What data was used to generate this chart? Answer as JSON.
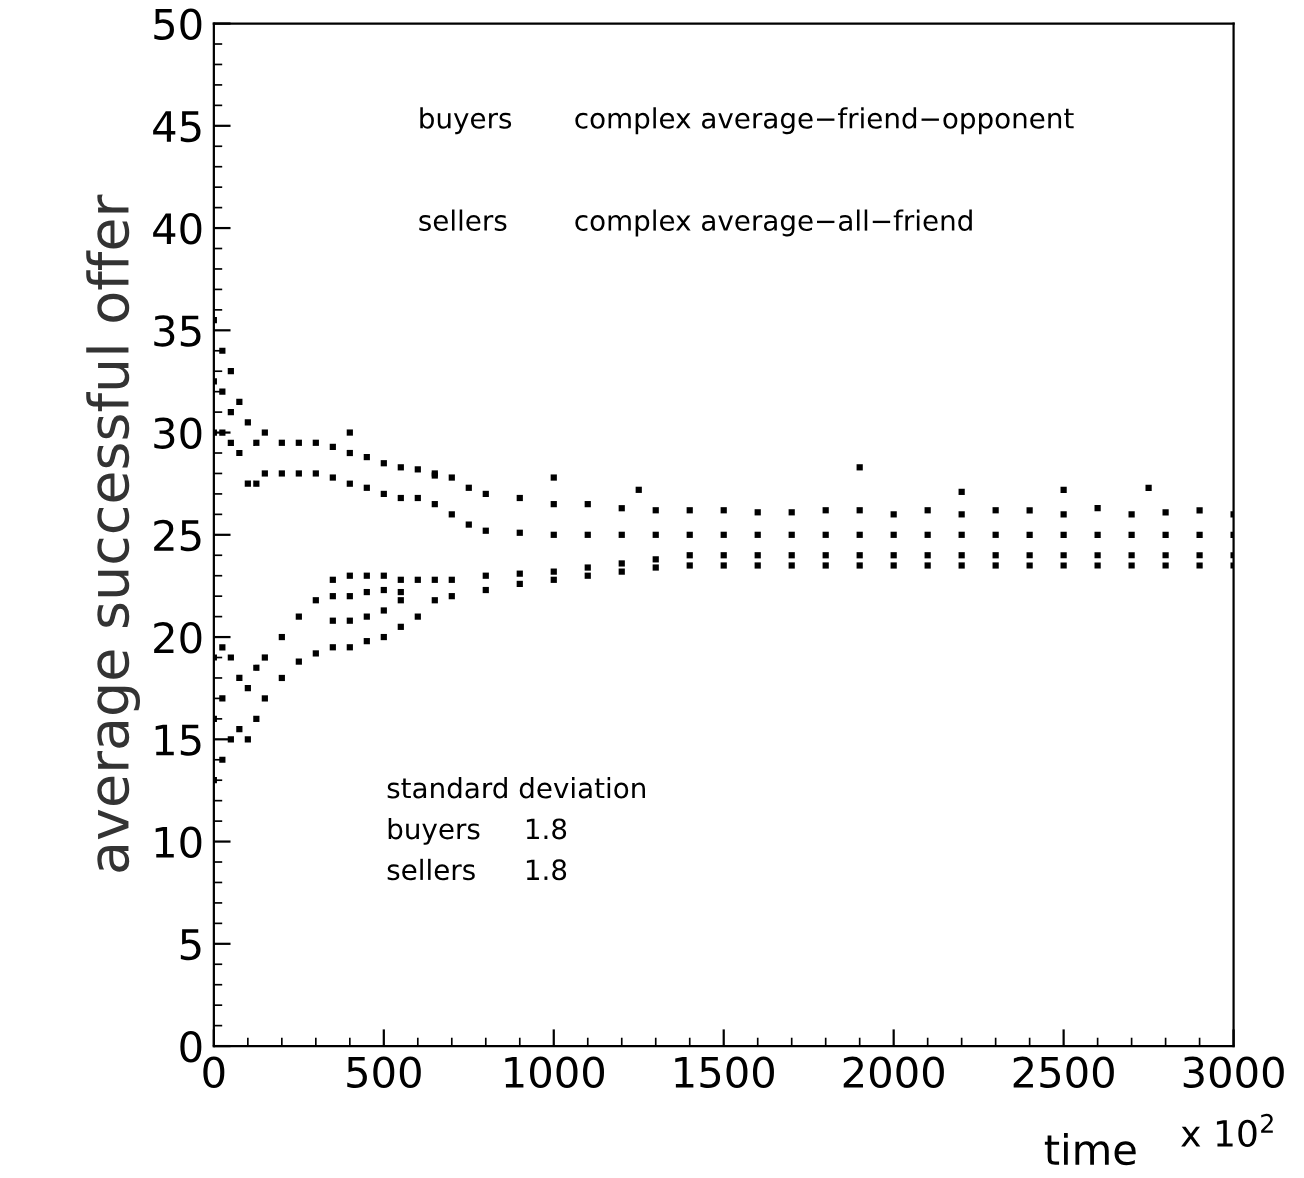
{
  "chart_data": {
    "type": "scatter",
    "xlabel": "time",
    "ylabel": "average successful offer",
    "xlim": [
      0,
      3000
    ],
    "xticks": [
      0,
      500,
      1000,
      1500,
      2000,
      2500,
      3000
    ],
    "ylim": [
      0,
      50
    ],
    "yticks": [
      0,
      5,
      10,
      15,
      20,
      25,
      30,
      35,
      40,
      45,
      50
    ],
    "grid": false,
    "legend": false,
    "marker": "square",
    "annotations": [
      "buyers",
      "complex average−friend−opponent",
      "sellers",
      "complex average−all−friend",
      "standard deviation",
      "buyers",
      "1.8",
      "sellers",
      "1.8",
      "x 10$^{2}$"
    ],
    "series": [
      {
        "color": "#000000",
        "x": [
          0,
          0,
          0,
          25,
          25,
          25,
          50,
          50,
          50,
          75,
          75,
          100,
          100,
          125,
          125,
          150,
          150,
          200,
          200,
          250,
          250,
          300,
          300,
          350,
          350,
          400,
          400,
          450,
          450,
          500,
          500,
          550,
          550,
          600,
          600,
          650,
          650,
          700,
          700,
          750,
          750,
          800,
          800,
          900,
          900,
          1000,
          1000,
          1100,
          1100,
          1200,
          1200,
          1300,
          1300,
          1400,
          1400,
          1500,
          1500,
          1600,
          1600,
          1700,
          1700,
          1800,
          1800,
          1900,
          1900,
          2000,
          2000,
          2100,
          2100,
          2200,
          2200,
          2300,
          2300,
          2400,
          2400,
          2500,
          2500,
          2600,
          2600,
          2700,
          2700,
          2800,
          2800,
          2900,
          2900,
          3000,
          3000,
          400,
          650,
          1000,
          1250,
          1900,
          2200,
          2500,
          2750
        ],
        "values": [
          30,
          32.5,
          35.5,
          30,
          32,
          34,
          29.5,
          31,
          33,
          29,
          31.5,
          27.5,
          30.5,
          27.5,
          29.5,
          28,
          30,
          28,
          29.5,
          28,
          29.5,
          28,
          29.5,
          27.8,
          29.3,
          27.5,
          29,
          27.3,
          28.8,
          27,
          28.5,
          26.8,
          28.3,
          26.8,
          28.2,
          26.5,
          28,
          26,
          27.8,
          25.5,
          27.3,
          25.2,
          27,
          25.1,
          26.8,
          25,
          26.5,
          25,
          26.5,
          25,
          26.3,
          25,
          26.2,
          25,
          26.2,
          25,
          26.2,
          25,
          26.1,
          25,
          26.1,
          25,
          26.2,
          25,
          26.2,
          25,
          26,
          25,
          26.2,
          25,
          26,
          25,
          26.2,
          25,
          26.2,
          25,
          26,
          25,
          26.3,
          25,
          26,
          25,
          26.1,
          25,
          26.2,
          25,
          26,
          30,
          27.9,
          27.8,
          27.2,
          28.3,
          27.1,
          27.2,
          27.3
        ]
      },
      {
        "color": "#000000",
        "x": [
          0,
          0,
          0,
          25,
          25,
          25,
          50,
          50,
          75,
          75,
          100,
          100,
          125,
          125,
          150,
          150,
          200,
          200,
          250,
          250,
          300,
          300,
          350,
          350,
          350,
          350,
          400,
          400,
          400,
          400,
          450,
          450,
          450,
          450,
          500,
          500,
          500,
          500,
          550,
          550,
          550,
          550,
          600,
          600,
          650,
          650,
          700,
          700,
          800,
          800,
          900,
          900,
          1000,
          1000,
          1100,
          1100,
          1200,
          1200,
          1300,
          1300,
          1400,
          1400,
          1500,
          1500,
          1600,
          1600,
          1700,
          1700,
          1800,
          1800,
          1900,
          1900,
          2000,
          2000,
          2100,
          2100,
          2200,
          2200,
          2300,
          2300,
          2400,
          2400,
          2500,
          2500,
          2600,
          2600,
          2700,
          2700,
          2800,
          2800,
          2900,
          2900,
          3000,
          3000
        ],
        "values": [
          13,
          16,
          19,
          14,
          17,
          19.5,
          15,
          19,
          15.5,
          18,
          15,
          17.5,
          16,
          18.5,
          17,
          19,
          18,
          20,
          18.8,
          21,
          19.2,
          21.8,
          19.5,
          20.8,
          22,
          22.8,
          19.5,
          20.8,
          22,
          23,
          19.8,
          21,
          22.2,
          23,
          20,
          21.3,
          22.3,
          23,
          20.5,
          21.8,
          22.2,
          22.8,
          21,
          22.8,
          21.8,
          22.8,
          22,
          22.8,
          22.3,
          23,
          22.6,
          23.1,
          22.8,
          23.2,
          23,
          23.4,
          23.2,
          23.6,
          23.4,
          23.8,
          23.5,
          24,
          23.5,
          24,
          23.5,
          24,
          23.5,
          24,
          23.5,
          24,
          23.5,
          24,
          23.5,
          24,
          23.5,
          24,
          23.5,
          24,
          23.5,
          24,
          23.5,
          24,
          23.5,
          24,
          23.5,
          24,
          23.5,
          24,
          23.5,
          24,
          23.5,
          24,
          23.5,
          24
        ]
      }
    ]
  }
}
